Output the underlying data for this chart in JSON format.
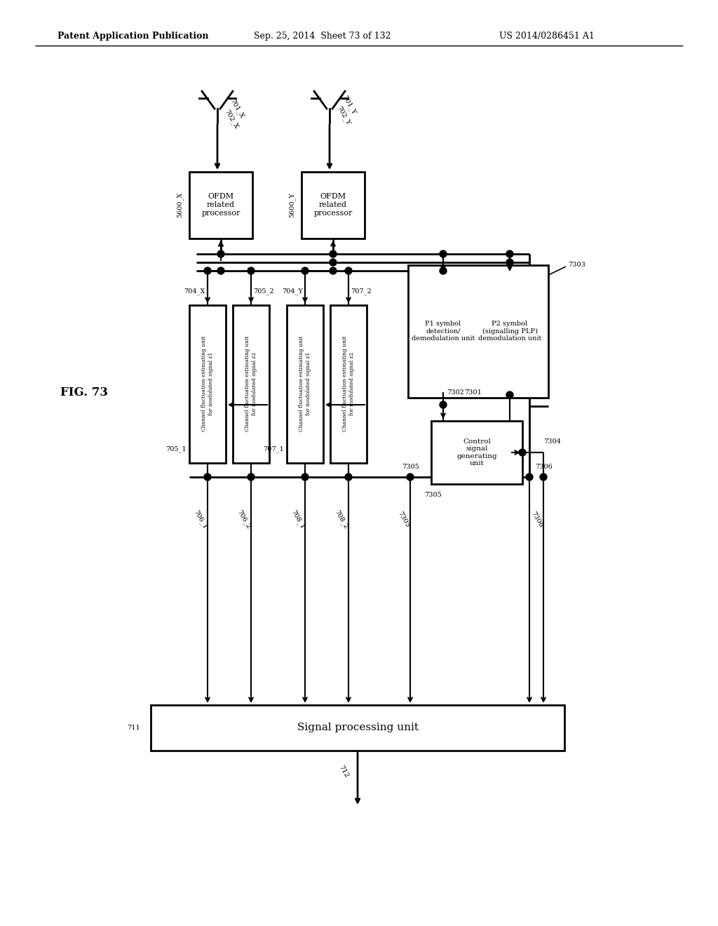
{
  "bg_color": "#ffffff",
  "line_color": "#000000",
  "text_color": "#000000",
  "header1": "Patent Application Publication",
  "header2": "Sep. 25, 2014  Sheet 73 of 132",
  "header3": "US 2014/0286451 A1",
  "fig_label": "FIG. 73"
}
